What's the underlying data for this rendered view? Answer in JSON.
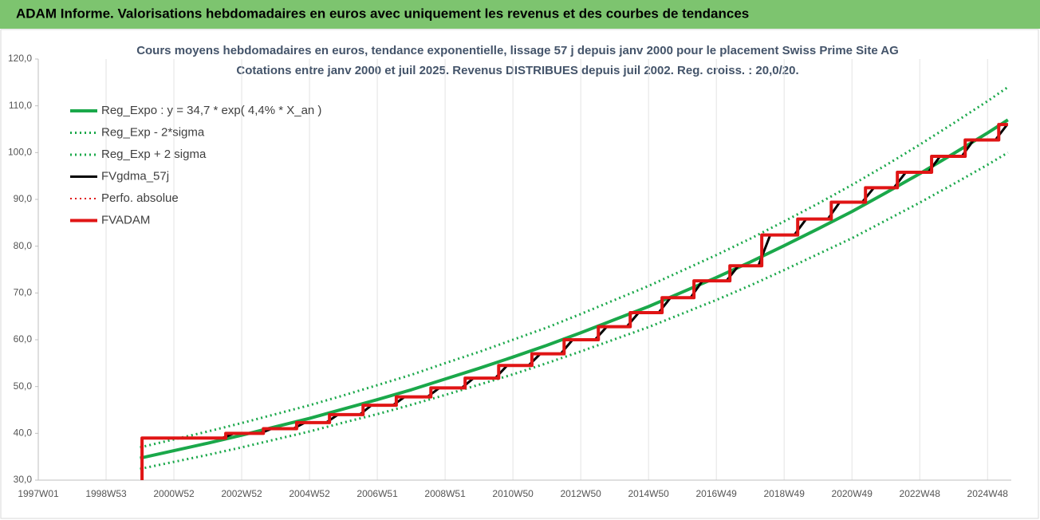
{
  "chart_data": {
    "type": "line",
    "header": "ADAM Informe. Valorisations hebdomadaires en euros avec uniquement les revenus et des courbes de tendances",
    "title": "Cours moyens hebdomadaires en euros, tendance exponentielle, lissage 57 j depuis janv 2000 pour le placement Swiss Prime Site AG",
    "subtitle": "Cotations entre janv 2000 et juil 2025. Revenus DISTRIBUES depuis juil 2002. Reg. croiss. : 20,0/20.",
    "xlim": [
      1997,
      2025.7
    ],
    "xticks": [
      {
        "value": 1997,
        "label": "1997W01"
      },
      {
        "value": 1999,
        "label": "1998W53"
      },
      {
        "value": 2001,
        "label": "2000W52"
      },
      {
        "value": 2003,
        "label": "2002W52"
      },
      {
        "value": 2005,
        "label": "2004W52"
      },
      {
        "value": 2007,
        "label": "2006W51"
      },
      {
        "value": 2009,
        "label": "2008W51"
      },
      {
        "value": 2011,
        "label": "2010W50"
      },
      {
        "value": 2013,
        "label": "2012W50"
      },
      {
        "value": 2015,
        "label": "2014W50"
      },
      {
        "value": 2017,
        "label": "2016W49"
      },
      {
        "value": 2019,
        "label": "2018W49"
      },
      {
        "value": 2021,
        "label": "2020W49"
      },
      {
        "value": 2023,
        "label": "2022W48"
      },
      {
        "value": 2025,
        "label": "2024W48"
      }
    ],
    "ylim": [
      30,
      120
    ],
    "yticks": [
      {
        "value": 30,
        "label": "30,0"
      },
      {
        "value": 40,
        "label": "40,0"
      },
      {
        "value": 50,
        "label": "50,0"
      },
      {
        "value": 60,
        "label": "60,0"
      },
      {
        "value": 70,
        "label": "70,0"
      },
      {
        "value": 80,
        "label": "80,0"
      },
      {
        "value": 90,
        "label": "90,0"
      },
      {
        "value": 100,
        "label": "100,0"
      },
      {
        "value": 110,
        "label": "110,0"
      },
      {
        "value": 120,
        "label": "120,0"
      }
    ],
    "grid": "x",
    "legend": "upper left",
    "series": [
      {
        "name": "Reg_Expo : y = 34,7 * exp( 4,4% *  X_an )",
        "color": "#1aa84a",
        "style": "solid",
        "linewidth": 4,
        "x": [
          2000,
          2001,
          2002,
          2003,
          2004,
          2005,
          2006,
          2007,
          2008,
          2009,
          2010,
          2011,
          2012,
          2013,
          2014,
          2015,
          2016,
          2017,
          2018,
          2019,
          2020,
          2021,
          2022,
          2023,
          2024,
          2025,
          2025.6
        ],
        "values": [
          34.7,
          36.3,
          37.9,
          39.6,
          41.4,
          43.2,
          45.2,
          47.2,
          49.3,
          51.6,
          53.9,
          56.3,
          58.8,
          61.5,
          64.3,
          67.1,
          70.2,
          73.3,
          76.6,
          80.1,
          83.7,
          87.4,
          91.4,
          95.5,
          99.8,
          104.2,
          107.0
        ]
      },
      {
        "name": "Reg_Exp - 2*sigma",
        "color": "#1aa84a",
        "style": "dotted",
        "linewidth": 3,
        "x": [
          2000,
          2001,
          2002,
          2003,
          2004,
          2005,
          2006,
          2007,
          2008,
          2009,
          2010,
          2011,
          2012,
          2013,
          2014,
          2015,
          2016,
          2017,
          2018,
          2019,
          2020,
          2021,
          2022,
          2023,
          2024,
          2025,
          2025.6
        ],
        "values": [
          32.4,
          33.9,
          35.4,
          37.0,
          38.7,
          40.4,
          42.3,
          44.1,
          46.1,
          48.2,
          50.4,
          52.6,
          55.0,
          57.5,
          60.1,
          62.7,
          65.6,
          68.5,
          71.6,
          74.9,
          78.3,
          81.7,
          85.5,
          89.3,
          93.3,
          97.4,
          100.0
        ]
      },
      {
        "name": "Reg_Exp + 2 sigma",
        "color": "#1aa84a",
        "style": "dotted",
        "linewidth": 3,
        "x": [
          2000,
          2001,
          2002,
          2003,
          2004,
          2005,
          2006,
          2007,
          2008,
          2009,
          2010,
          2011,
          2012,
          2013,
          2014,
          2015,
          2016,
          2017,
          2018,
          2019,
          2020,
          2021,
          2022,
          2023,
          2024,
          2025,
          2025.6
        ],
        "values": [
          37.0,
          38.7,
          40.4,
          42.2,
          44.1,
          46.0,
          48.1,
          50.3,
          52.5,
          55.0,
          57.4,
          60.0,
          62.6,
          65.5,
          68.5,
          71.5,
          74.8,
          78.1,
          81.6,
          85.3,
          89.1,
          93.1,
          97.3,
          101.7,
          106.3,
          111.0,
          114.0
        ]
      },
      {
        "name": "FVgdma_57j",
        "color": "#000000",
        "style": "solid",
        "linewidth": 3,
        "x": [
          2000.06,
          2002.43,
          2002.78,
          2003.54,
          2003.89,
          2004.52,
          2004.87,
          2005.49,
          2005.84,
          2006.48,
          2006.83,
          2007.46,
          2007.81,
          2008.48,
          2008.83,
          2009.49,
          2009.84,
          2010.48,
          2010.83,
          2011.46,
          2011.81,
          2012.41,
          2012.76,
          2013.42,
          2013.77,
          2014.36,
          2014.71,
          2015.3,
          2015.65,
          2016.24,
          2016.59,
          2017.3,
          2017.65,
          2018.24,
          2018.59,
          2019.3,
          2019.65,
          2020.29,
          2020.64,
          2021.3,
          2021.65,
          2022.24,
          2022.59,
          2023.25,
          2023.6,
          2024.24,
          2024.59,
          2025.23,
          2025.58,
          2025.6
        ],
        "values": [
          39,
          39,
          40,
          40,
          41,
          41,
          42.3,
          42.3,
          44,
          44,
          46,
          46,
          47.8,
          47.8,
          49.7,
          49.7,
          51.8,
          51.8,
          54.5,
          54.5,
          57,
          57,
          60,
          60,
          62.8,
          62.8,
          65.8,
          65.8,
          69,
          69,
          72.6,
          72.6,
          75.8,
          75.8,
          82.4,
          82.4,
          85.8,
          85.8,
          89.4,
          89.4,
          92.5,
          92.5,
          95.8,
          95.8,
          99.2,
          99.2,
          102.7,
          102.7,
          106,
          106
        ]
      },
      {
        "name": "Perfo. absolue",
        "color": "#e01515",
        "style": "dotted",
        "linewidth": 2,
        "x": [
          2000.06,
          2000.06,
          2002.53,
          2002.53,
          2003.64,
          2003.64,
          2004.62,
          2004.62,
          2005.59,
          2005.59,
          2006.58,
          2006.58,
          2007.56,
          2007.56,
          2008.58,
          2008.58,
          2009.59,
          2009.59,
          2010.58,
          2010.58,
          2011.56,
          2011.56,
          2012.51,
          2012.51,
          2013.52,
          2013.52,
          2014.46,
          2014.46,
          2015.4,
          2015.4,
          2016.34,
          2016.34,
          2017.4,
          2017.4,
          2018.34,
          2018.34,
          2019.4,
          2019.4,
          2020.39,
          2020.39,
          2021.4,
          2021.4,
          2022.34,
          2022.34,
          2023.35,
          2023.35,
          2024.34,
          2024.34,
          2025.33,
          2025.33,
          2025.6
        ],
        "values": [
          30,
          39,
          39,
          40,
          40,
          41,
          41,
          42.3,
          42.3,
          44,
          44,
          46,
          46,
          47.8,
          47.8,
          49.7,
          49.7,
          51.8,
          51.8,
          54.5,
          54.5,
          57,
          57,
          60,
          60,
          62.8,
          62.8,
          65.8,
          65.8,
          69,
          69,
          72.6,
          72.6,
          75.8,
          75.8,
          82.4,
          82.4,
          85.8,
          85.8,
          89.4,
          89.4,
          92.5,
          92.5,
          95.8,
          95.8,
          99.2,
          99.2,
          102.7,
          102.7,
          106,
          106
        ]
      },
      {
        "name": "FVADAM",
        "color": "#e01515",
        "style": "solid",
        "linewidth": 4,
        "x": [
          2000.06,
          2000.06,
          2002.53,
          2002.53,
          2003.64,
          2003.64,
          2004.62,
          2004.62,
          2005.59,
          2005.59,
          2006.58,
          2006.58,
          2007.56,
          2007.56,
          2008.58,
          2008.58,
          2009.59,
          2009.59,
          2010.58,
          2010.58,
          2011.56,
          2011.56,
          2012.51,
          2012.51,
          2013.52,
          2013.52,
          2014.46,
          2014.46,
          2015.4,
          2015.4,
          2016.34,
          2016.34,
          2017.4,
          2017.4,
          2018.34,
          2018.34,
          2019.4,
          2019.4,
          2020.39,
          2020.39,
          2021.4,
          2021.4,
          2022.34,
          2022.34,
          2023.35,
          2023.35,
          2024.34,
          2024.34,
          2025.33,
          2025.33,
          2025.6
        ],
        "values": [
          30,
          39,
          39,
          40,
          40,
          41,
          41,
          42.3,
          42.3,
          44,
          44,
          46,
          46,
          47.8,
          47.8,
          49.7,
          49.7,
          51.8,
          51.8,
          54.5,
          54.5,
          57,
          57,
          60,
          60,
          62.8,
          62.8,
          65.8,
          65.8,
          69,
          69,
          72.6,
          72.6,
          75.8,
          75.8,
          82.4,
          82.4,
          85.8,
          85.8,
          89.4,
          89.4,
          92.5,
          92.5,
          95.8,
          95.8,
          99.2,
          99.2,
          102.7,
          102.7,
          106,
          106
        ]
      }
    ]
  }
}
